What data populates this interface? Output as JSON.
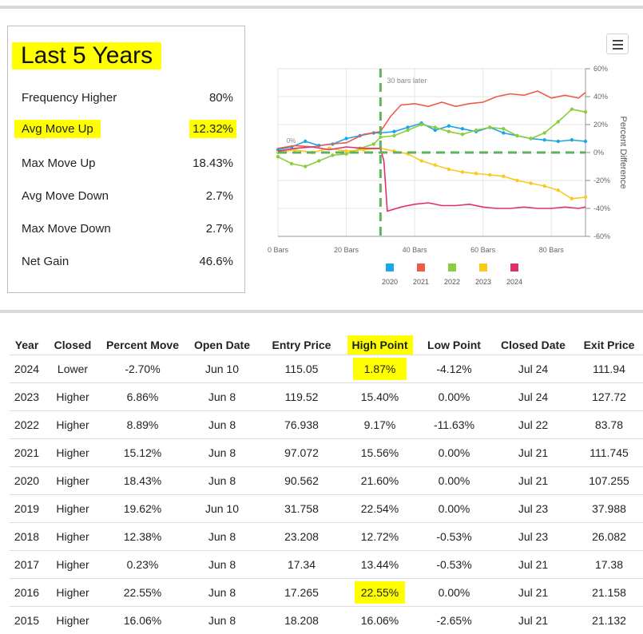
{
  "stats": {
    "title": "Last 5 Years",
    "rows": [
      {
        "label": "Frequency Higher",
        "value": "80%"
      },
      {
        "label": "Avg Move Up",
        "value": "12.32%"
      },
      {
        "label": "Max Move Up",
        "value": "18.43%"
      },
      {
        "label": "Avg Move Down",
        "value": "2.7%"
      },
      {
        "label": "Max Move Down",
        "value": "2.7%"
      },
      {
        "label": "Net Gain",
        "value": "46.6%"
      }
    ]
  },
  "chart_data": {
    "type": "line",
    "x_ticks": [
      "0 Bars",
      "20 Bars",
      "40 Bars",
      "60 Bars",
      "80 Bars"
    ],
    "y_ticks": [
      "60%",
      "40%",
      "20%",
      "0%",
      "-20%",
      "-40%",
      "-60%"
    ],
    "ylabel": "Percent Difference",
    "xlim": [
      0,
      90
    ],
    "ylim": [
      -60,
      60
    ],
    "grid": true,
    "annotation": "30 bars later",
    "annotation_x": 30,
    "baseline_label": "0%",
    "legend_position": "bottom",
    "series": [
      {
        "name": "2020",
        "color": "#1aa7e8",
        "points": [
          [
            0,
            2
          ],
          [
            4,
            4
          ],
          [
            8,
            8
          ],
          [
            12,
            5
          ],
          [
            16,
            6
          ],
          [
            20,
            10
          ],
          [
            24,
            12
          ],
          [
            28,
            14
          ],
          [
            30,
            14
          ],
          [
            34,
            15
          ],
          [
            38,
            18
          ],
          [
            42,
            21
          ],
          [
            46,
            16
          ],
          [
            50,
            19
          ],
          [
            54,
            17
          ],
          [
            58,
            15
          ],
          [
            62,
            18
          ],
          [
            66,
            14
          ],
          [
            70,
            12
          ],
          [
            74,
            10
          ],
          [
            78,
            9
          ],
          [
            82,
            8
          ],
          [
            86,
            9
          ],
          [
            90,
            8
          ]
        ]
      },
      {
        "name": "2021",
        "color": "#ee5b4a",
        "points": [
          [
            0,
            3
          ],
          [
            5,
            5
          ],
          [
            10,
            4
          ],
          [
            15,
            6
          ],
          [
            20,
            7
          ],
          [
            25,
            13
          ],
          [
            30,
            15
          ],
          [
            33,
            26
          ],
          [
            36,
            34
          ],
          [
            40,
            35
          ],
          [
            44,
            33
          ],
          [
            48,
            36
          ],
          [
            52,
            33
          ],
          [
            56,
            35
          ],
          [
            60,
            36
          ],
          [
            64,
            40
          ],
          [
            68,
            42
          ],
          [
            72,
            41
          ],
          [
            76,
            44
          ],
          [
            80,
            39
          ],
          [
            84,
            41
          ],
          [
            88,
            39
          ],
          [
            90,
            43
          ]
        ]
      },
      {
        "name": "2022",
        "color": "#8ccc3e",
        "points": [
          [
            0,
            -3
          ],
          [
            4,
            -8
          ],
          [
            8,
            -10
          ],
          [
            12,
            -6
          ],
          [
            16,
            -2
          ],
          [
            20,
            -1
          ],
          [
            24,
            3
          ],
          [
            28,
            6
          ],
          [
            30,
            11
          ],
          [
            34,
            12
          ],
          [
            38,
            16
          ],
          [
            42,
            20
          ],
          [
            46,
            18
          ],
          [
            50,
            15
          ],
          [
            54,
            13
          ],
          [
            58,
            16
          ],
          [
            62,
            18
          ],
          [
            66,
            17
          ],
          [
            70,
            12
          ],
          [
            74,
            10
          ],
          [
            78,
            14
          ],
          [
            82,
            22
          ],
          [
            86,
            31
          ],
          [
            90,
            29
          ]
        ]
      },
      {
        "name": "2023",
        "color": "#fbc91b",
        "points": [
          [
            0,
            0
          ],
          [
            5,
            2
          ],
          [
            10,
            0
          ],
          [
            15,
            3
          ],
          [
            20,
            1
          ],
          [
            25,
            2
          ],
          [
            30,
            3
          ],
          [
            34,
            1
          ],
          [
            38,
            -1
          ],
          [
            42,
            -6
          ],
          [
            46,
            -9
          ],
          [
            50,
            -12
          ],
          [
            54,
            -14
          ],
          [
            58,
            -15
          ],
          [
            62,
            -16
          ],
          [
            66,
            -17
          ],
          [
            70,
            -20
          ],
          [
            74,
            -22
          ],
          [
            78,
            -24
          ],
          [
            82,
            -27
          ],
          [
            86,
            -33
          ],
          [
            90,
            -32
          ]
        ]
      },
      {
        "name": "2024",
        "color": "#e0306a",
        "points": [
          [
            0,
            1
          ],
          [
            5,
            3
          ],
          [
            10,
            4
          ],
          [
            15,
            2
          ],
          [
            20,
            4
          ],
          [
            25,
            3
          ],
          [
            30,
            3
          ],
          [
            31,
            -6
          ],
          [
            32,
            -42
          ],
          [
            36,
            -39
          ],
          [
            40,
            -37
          ],
          [
            44,
            -36
          ],
          [
            48,
            -38
          ],
          [
            52,
            -38
          ],
          [
            56,
            -37
          ],
          [
            60,
            -39
          ],
          [
            64,
            -40
          ],
          [
            68,
            -40
          ],
          [
            72,
            -39
          ],
          [
            76,
            -40
          ],
          [
            80,
            -40
          ],
          [
            84,
            -39
          ],
          [
            88,
            -40
          ],
          [
            90,
            -39
          ]
        ]
      }
    ]
  },
  "table": {
    "headers": {
      "year": "Year",
      "closed": "Closed",
      "percent_move": "Percent Move",
      "open_date": "Open Date",
      "entry_price": "Entry Price",
      "high_point": "High Point",
      "low_point": "Low Point",
      "closed_date": "Closed Date",
      "exit_price": "Exit Price"
    },
    "rows": [
      {
        "year": "2024",
        "closed": "Lower",
        "percent_move": "-2.70%",
        "open_date": "Jun 10",
        "entry_price": "115.05",
        "high_point": "1.87%",
        "low_point": "-4.12%",
        "closed_date": "Jul 24",
        "exit_price": "111.94"
      },
      {
        "year": "2023",
        "closed": "Higher",
        "percent_move": "6.86%",
        "open_date": "Jun 8",
        "entry_price": "119.52",
        "high_point": "15.40%",
        "low_point": "0.00%",
        "closed_date": "Jul 24",
        "exit_price": "127.72"
      },
      {
        "year": "2022",
        "closed": "Higher",
        "percent_move": "8.89%",
        "open_date": "Jun 8",
        "entry_price": "76.938",
        "high_point": "9.17%",
        "low_point": "-11.63%",
        "closed_date": "Jul 22",
        "exit_price": "83.78"
      },
      {
        "year": "2021",
        "closed": "Higher",
        "percent_move": "15.12%",
        "open_date": "Jun 8",
        "entry_price": "97.072",
        "high_point": "15.56%",
        "low_point": "0.00%",
        "closed_date": "Jul 21",
        "exit_price": "111.745"
      },
      {
        "year": "2020",
        "closed": "Higher",
        "percent_move": "18.43%",
        "open_date": "Jun 8",
        "entry_price": "90.562",
        "high_point": "21.60%",
        "low_point": "0.00%",
        "closed_date": "Jul 21",
        "exit_price": "107.255"
      },
      {
        "year": "2019",
        "closed": "Higher",
        "percent_move": "19.62%",
        "open_date": "Jun 10",
        "entry_price": "31.758",
        "high_point": "22.54%",
        "low_point": "0.00%",
        "closed_date": "Jul 23",
        "exit_price": "37.988"
      },
      {
        "year": "2018",
        "closed": "Higher",
        "percent_move": "12.38%",
        "open_date": "Jun 8",
        "entry_price": "23.208",
        "high_point": "12.72%",
        "low_point": "-0.53%",
        "closed_date": "Jul 23",
        "exit_price": "26.082"
      },
      {
        "year": "2017",
        "closed": "Higher",
        "percent_move": "0.23%",
        "open_date": "Jun 8",
        "entry_price": "17.34",
        "high_point": "13.44%",
        "low_point": "-0.53%",
        "closed_date": "Jul 21",
        "exit_price": "17.38"
      },
      {
        "year": "2016",
        "closed": "Higher",
        "percent_move": "22.55%",
        "open_date": "Jun 8",
        "entry_price": "17.265",
        "high_point": "22.55%",
        "low_point": "0.00%",
        "closed_date": "Jul 21",
        "exit_price": "21.158"
      },
      {
        "year": "2015",
        "closed": "Higher",
        "percent_move": "16.06%",
        "open_date": "Jun 8",
        "entry_price": "18.208",
        "high_point": "16.06%",
        "low_point": "-2.65%",
        "closed_date": "Jul 21",
        "exit_price": "21.132"
      }
    ]
  },
  "colors": {
    "highlight": "#ffff00",
    "positive": "#3aa35a",
    "negative": "#e0484b"
  },
  "icons": {
    "menu": "hamburger-menu-icon"
  }
}
